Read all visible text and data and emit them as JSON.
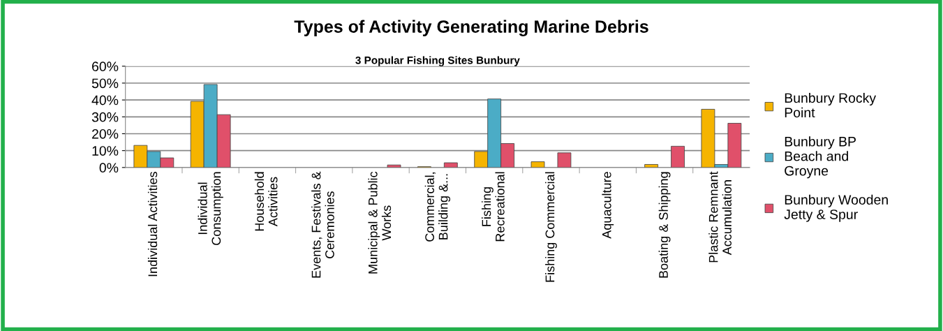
{
  "chart_data": {
    "type": "bar",
    "title": "Types of Activity Generating Marine Debris",
    "subtitle": "3 Popular Fishing Sites Bunbury",
    "categories": [
      "Individual Activities",
      "Individual\nConsumption",
      "Household\nActivities",
      "Events, Festivals &\nCeremonies",
      "Municipal & Public\nWorks",
      "Commercial,\nBuilding &...",
      "Fishing\nRecreational",
      "Fishing Commercial",
      "Aquaculture",
      "Boating & Shipping",
      "Plastic Remnant\nAccumulation"
    ],
    "series": [
      {
        "name": "Bunbury Rocky\nPoint",
        "color": "#f5b400",
        "values": [
          13.1,
          39.2,
          0,
          0,
          0,
          0.5,
          9.5,
          3.4,
          0,
          1.8,
          34.5
        ]
      },
      {
        "name": "Bunbury BP\nBeach and\nGroyne",
        "color": "#4bacc6",
        "values": [
          9.5,
          49.2,
          0,
          0,
          0,
          0,
          40.6,
          0,
          0,
          0,
          1.8
        ]
      },
      {
        "name": "Bunbury Wooden\nJetty & Spur",
        "color": "#e0506a",
        "values": [
          5.7,
          31.3,
          0,
          0,
          1.5,
          2.8,
          14.2,
          8.7,
          0,
          12.6,
          26.2
        ]
      }
    ],
    "ylim": [
      0,
      60
    ],
    "yticks": [
      {
        "value": 0,
        "label": "0%"
      },
      {
        "value": 10,
        "label": "10%"
      },
      {
        "value": 20,
        "label": "20%"
      },
      {
        "value": 30,
        "label": "30%"
      },
      {
        "value": 40,
        "label": "40%"
      },
      {
        "value": 50,
        "label": "50%"
      },
      {
        "value": 60,
        "label": "60%"
      }
    ],
    "grid": "y",
    "legend": "right"
  }
}
